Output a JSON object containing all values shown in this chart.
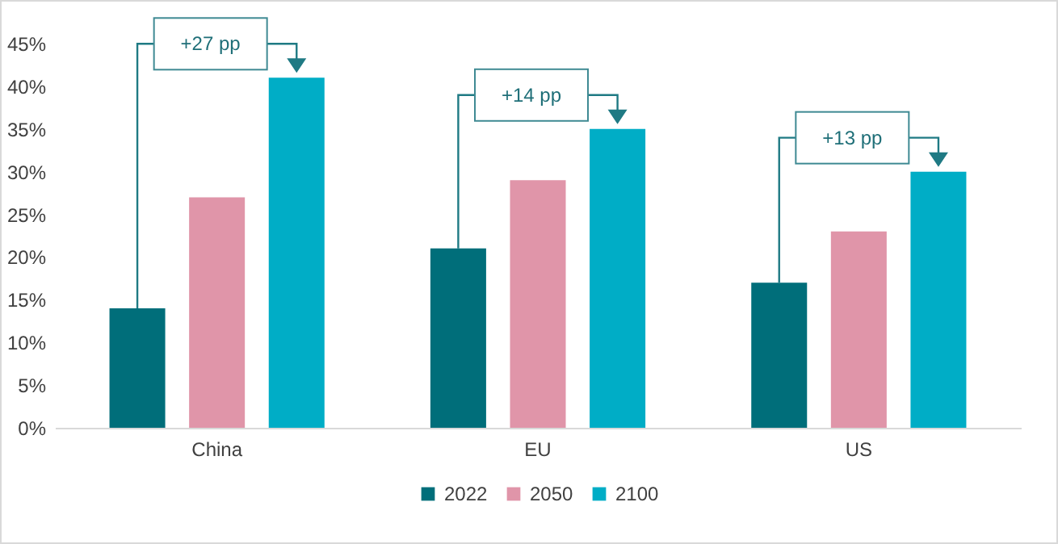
{
  "chart_data": {
    "type": "bar",
    "categories": [
      "China",
      "EU",
      "US"
    ],
    "series": [
      {
        "name": "2022",
        "color": "#006e7a",
        "values": [
          14,
          21,
          17
        ]
      },
      {
        "name": "2050",
        "color": "#e095a9",
        "values": [
          27,
          29,
          23
        ]
      },
      {
        "name": "2100",
        "color": "#00adc6",
        "values": [
          41,
          35,
          30
        ]
      }
    ],
    "ylim": [
      0,
      45
    ],
    "yticks": [
      {
        "value": 0,
        "label": "0%"
      },
      {
        "value": 5,
        "label": "5%"
      },
      {
        "value": 10,
        "label": "10%"
      },
      {
        "value": 15,
        "label": "15%"
      },
      {
        "value": 20,
        "label": "20%"
      },
      {
        "value": 25,
        "label": "25%"
      },
      {
        "value": 30,
        "label": "30%"
      },
      {
        "value": 35,
        "label": "35%"
      },
      {
        "value": 40,
        "label": "40%"
      },
      {
        "value": 45,
        "label": "45%"
      }
    ],
    "grid": false,
    "legend": "bottom",
    "annotations": [
      "+27 pp",
      "+14 pp",
      "+13 pp"
    ]
  }
}
